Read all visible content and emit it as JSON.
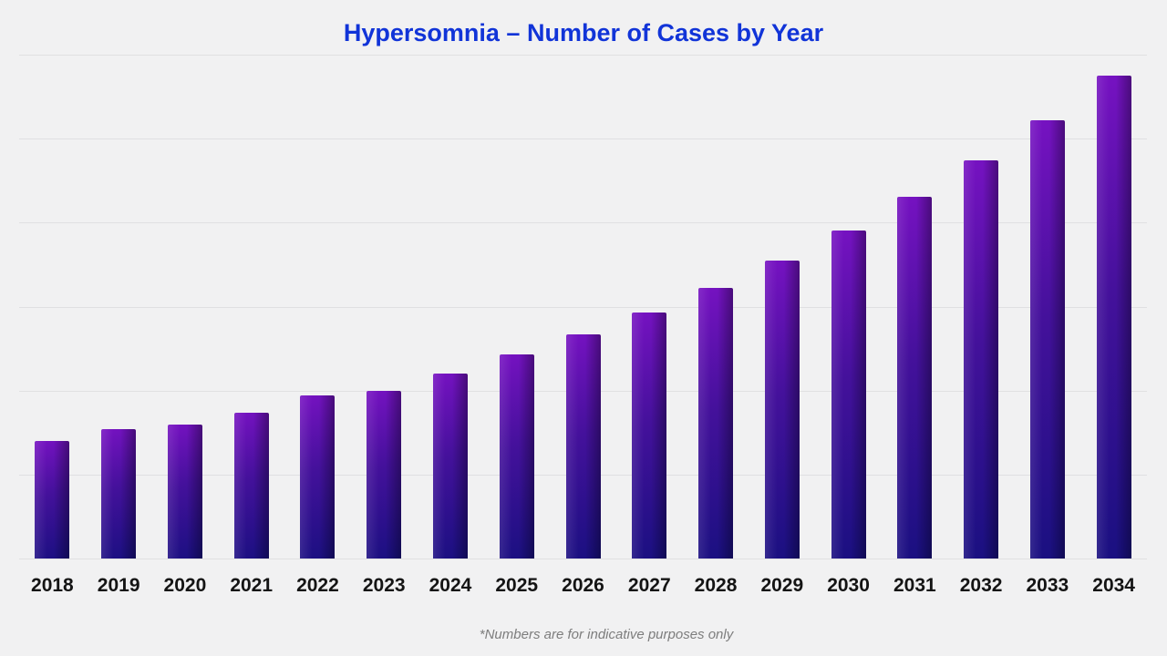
{
  "page": {
    "background": "#f1f1f2"
  },
  "title": {
    "text": "Hypersomnia – Number of Cases by Year",
    "color": "#1134d8"
  },
  "footnote": {
    "text": "*Numbers are for indicative purposes only",
    "color": "#7d7d7d"
  },
  "chart_data": {
    "type": "bar",
    "title": "Hypersomnia – Number of Cases by Year",
    "categories": [
      "2018",
      "2019",
      "2020",
      "2021",
      "2022",
      "2023",
      "2024",
      "2025",
      "2026",
      "2027",
      "2028",
      "2029",
      "2030",
      "2031",
      "2032",
      "2033",
      "2034"
    ],
    "values": [
      140,
      154,
      160,
      174,
      194,
      200,
      220,
      243,
      267,
      293,
      322,
      355,
      391,
      431,
      474,
      522,
      575
    ],
    "xlabel": "",
    "ylabel": "",
    "ylim": [
      0,
      600
    ],
    "grid": {
      "horizontal": true,
      "step": 100,
      "y_tick_labels_visible": false,
      "color": "#e0e0e2"
    },
    "legend": "none",
    "note": "values estimated from unlabeled gridlines; each gridline interval = 100 units",
    "bar_colors": {
      "gradient_top": "#7712c2",
      "gradient_mid": "#44119b",
      "gradient_bottom": "#191080",
      "right_edge_shadow": "rgba(0,0,0,0.35)"
    },
    "x_label_color": "#141414"
  }
}
